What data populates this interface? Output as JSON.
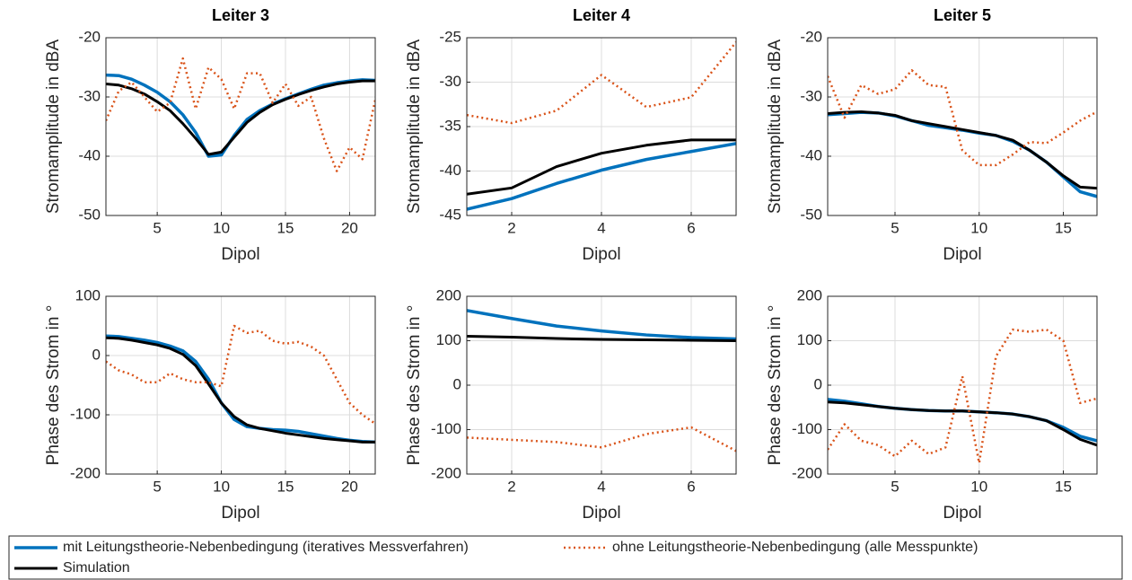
{
  "chart_data": [
    {
      "type": "line",
      "title": "Leiter 3",
      "xlabel": "Dipol",
      "ylabel": "Stromamplitude in dBA",
      "x": [
        1,
        2,
        3,
        4,
        5,
        6,
        7,
        8,
        9,
        10,
        11,
        12,
        13,
        14,
        15,
        16,
        17,
        18,
        19,
        20,
        21,
        22
      ],
      "xlim": [
        1,
        22
      ],
      "xticks": [
        5,
        10,
        15,
        20
      ],
      "ylim": [
        -50,
        -20
      ],
      "yticks": [
        -50,
        -40,
        -30,
        -20
      ],
      "grid": true,
      "series": [
        {
          "name": "mit Leitungstheorie-Nebenbedingung (iteratives Messverfahren)",
          "color": "#0072bd",
          "style": "solid",
          "values": [
            -26.3,
            -26.4,
            -27,
            -28,
            -29.2,
            -30.8,
            -33,
            -36,
            -40,
            -39.8,
            -36.5,
            -33.8,
            -32.3,
            -31.2,
            -30.3,
            -29.5,
            -28.7,
            -28,
            -27.6,
            -27.3,
            -27.1,
            -27.2
          ]
        },
        {
          "name": "Simulation",
          "color": "#000000",
          "style": "solid",
          "values": [
            -27.8,
            -28,
            -28.6,
            -29.5,
            -30.8,
            -32.3,
            -34.5,
            -37,
            -39.7,
            -39.3,
            -36.8,
            -34.3,
            -32.6,
            -31.3,
            -30.4,
            -29.6,
            -28.9,
            -28.3,
            -27.8,
            -27.5,
            -27.3,
            -27.3
          ]
        },
        {
          "name": "ohne Leitungstheorie-Nebenbedingung (alle Messpunkte)",
          "color": "#d95319",
          "style": "dotted",
          "values": [
            -34,
            -29,
            -27.5,
            -30,
            -32.5,
            -31,
            -23.5,
            -32,
            -25,
            -27,
            -32,
            -26,
            -26,
            -31,
            -27.8,
            -31.5,
            -30,
            -37,
            -42.5,
            -38.5,
            -40.5,
            -30.5
          ]
        }
      ]
    },
    {
      "type": "line",
      "title": "Leiter 4",
      "xlabel": "Dipol",
      "ylabel": "Stromamplitude in dBA",
      "x": [
        1,
        2,
        3,
        4,
        5,
        6,
        7
      ],
      "xlim": [
        1,
        7
      ],
      "xticks": [
        2,
        4,
        6
      ],
      "ylim": [
        -45,
        -25
      ],
      "yticks": [
        -45,
        -40,
        -35,
        -30,
        -25
      ],
      "grid": true,
      "series": [
        {
          "name": "mit Leitungstheorie-Nebenbedingung (iteratives Messverfahren)",
          "color": "#0072bd",
          "style": "solid",
          "values": [
            -44.3,
            -43.1,
            -41.4,
            -39.9,
            -38.7,
            -37.8,
            -36.9
          ]
        },
        {
          "name": "Simulation",
          "color": "#000000",
          "style": "solid",
          "values": [
            -42.6,
            -41.9,
            -39.5,
            -38,
            -37.1,
            -36.5,
            -36.5
          ]
        },
        {
          "name": "ohne Leitungstheorie-Nebenbedingung (alle Messpunkte)",
          "color": "#d95319",
          "style": "dotted",
          "values": [
            -33.7,
            -34.6,
            -33.2,
            -29.2,
            -32.8,
            -31.7,
            -25.5
          ]
        }
      ]
    },
    {
      "type": "line",
      "title": "Leiter 5",
      "xlabel": "Dipol",
      "ylabel": "Stromamplitude in dBA",
      "x": [
        1,
        2,
        3,
        4,
        5,
        6,
        7,
        8,
        9,
        10,
        11,
        12,
        13,
        14,
        15,
        16,
        17
      ],
      "xlim": [
        1,
        17
      ],
      "xticks": [
        5,
        10,
        15
      ],
      "ylim": [
        -50,
        -20
      ],
      "yticks": [
        -50,
        -40,
        -30,
        -20
      ],
      "grid": true,
      "series": [
        {
          "name": "mit Leitungstheorie-Nebenbedingung (iteratives Messverfahren)",
          "color": "#0072bd",
          "style": "solid",
          "values": [
            -33,
            -32.8,
            -32.6,
            -32.7,
            -33.2,
            -34,
            -34.8,
            -35.2,
            -35.6,
            -36.1,
            -36.5,
            -37.5,
            -39,
            -41,
            -43.5,
            -46,
            -46.8
          ]
        },
        {
          "name": "Simulation",
          "color": "#000000",
          "style": "solid",
          "values": [
            -32.8,
            -32.6,
            -32.5,
            -32.7,
            -33.1,
            -34,
            -34.5,
            -35,
            -35.5,
            -36,
            -36.5,
            -37.3,
            -39,
            -41,
            -43.3,
            -45.2,
            -45.4
          ]
        },
        {
          "name": "ohne Leitungstheorie-Nebenbedingung (alle Messpunkte)",
          "color": "#d95319",
          "style": "dotted",
          "values": [
            -26.5,
            -33.5,
            -28,
            -29.5,
            -28.7,
            -25.5,
            -28,
            -28.3,
            -39,
            -41.5,
            -41.5,
            -39.7,
            -37.6,
            -37.8,
            -36,
            -34,
            -32.5
          ]
        }
      ]
    },
    {
      "type": "line",
      "xlabel": "Dipol",
      "ylabel": "Phase des Strom in °",
      "x": [
        1,
        2,
        3,
        4,
        5,
        6,
        7,
        8,
        9,
        10,
        11,
        12,
        13,
        14,
        15,
        16,
        17,
        18,
        19,
        20,
        21,
        22
      ],
      "xlim": [
        1,
        22
      ],
      "xticks": [
        5,
        10,
        15,
        20
      ],
      "ylim": [
        -200,
        100
      ],
      "yticks": [
        -200,
        -100,
        0,
        100
      ],
      "grid": true,
      "series": [
        {
          "name": "mit Leitungstheorie-Nebenbedingung (iteratives Messverfahren)",
          "color": "#0072bd",
          "style": "solid",
          "values": [
            33,
            32,
            29,
            26,
            22,
            16,
            8,
            -10,
            -40,
            -80,
            -108,
            -120,
            -123,
            -125,
            -126,
            -128,
            -132,
            -136,
            -140,
            -143,
            -145,
            -146
          ]
        },
        {
          "name": "Simulation",
          "color": "#000000",
          "style": "solid",
          "values": [
            30,
            29,
            26,
            22,
            18,
            12,
            2,
            -17,
            -48,
            -80,
            -103,
            -117,
            -123,
            -127,
            -131,
            -134,
            -137,
            -140,
            -142,
            -144,
            -146,
            -146
          ]
        },
        {
          "name": "ohne Leitungstheorie-Nebenbedingung (alle Messpunkte)",
          "color": "#d95319",
          "style": "dotted",
          "values": [
            -10,
            -25,
            -32,
            -45,
            -45,
            -30,
            -40,
            -45,
            -45,
            -52,
            50,
            38,
            42,
            25,
            20,
            23,
            15,
            0,
            -40,
            -80,
            -100,
            -115
          ]
        }
      ]
    },
    {
      "type": "line",
      "xlabel": "Dipol",
      "ylabel": "Phase des Strom in °",
      "x": [
        1,
        2,
        3,
        4,
        5,
        6,
        7
      ],
      "xlim": [
        1,
        7
      ],
      "xticks": [
        2,
        4,
        6
      ],
      "ylim": [
        -200,
        200
      ],
      "yticks": [
        -200,
        -100,
        0,
        100,
        200
      ],
      "grid": true,
      "series": [
        {
          "name": "mit Leitungstheorie-Nebenbedingung (iteratives Messverfahren)",
          "color": "#0072bd",
          "style": "solid",
          "values": [
            168,
            150,
            133,
            122,
            113,
            107,
            104
          ]
        },
        {
          "name": "Simulation",
          "color": "#000000",
          "style": "solid",
          "values": [
            110,
            108,
            105,
            103,
            102,
            101,
            100
          ]
        },
        {
          "name": "ohne Leitungstheorie-Nebenbedingung (alle Messpunkte)",
          "color": "#d95319",
          "style": "dotted",
          "values": [
            -118,
            -123,
            -128,
            -140,
            -110,
            -95,
            -148
          ]
        }
      ]
    },
    {
      "type": "line",
      "xlabel": "Dipol",
      "ylabel": "Phase des Strom in °",
      "x": [
        1,
        2,
        3,
        4,
        5,
        6,
        7,
        8,
        9,
        10,
        11,
        12,
        13,
        14,
        15,
        16,
        17
      ],
      "xlim": [
        1,
        17
      ],
      "xticks": [
        5,
        10,
        15
      ],
      "ylim": [
        -200,
        200
      ],
      "yticks": [
        -200,
        -100,
        0,
        100,
        200
      ],
      "grid": true,
      "series": [
        {
          "name": "mit Leitungstheorie-Nebenbedingung (iteratives Messverfahren)",
          "color": "#0072bd",
          "style": "solid",
          "values": [
            -32,
            -36,
            -42,
            -48,
            -52,
            -55,
            -57,
            -58,
            -58,
            -60,
            -62,
            -65,
            -71,
            -80,
            -95,
            -115,
            -125
          ]
        },
        {
          "name": "Simulation",
          "color": "#000000",
          "style": "solid",
          "values": [
            -38,
            -40,
            -44,
            -48,
            -52,
            -55,
            -57,
            -58,
            -58,
            -60,
            -62,
            -65,
            -71,
            -80,
            -100,
            -122,
            -135
          ]
        },
        {
          "name": "ohne Leitungstheorie-Nebenbedingung (alle Messpunkte)",
          "color": "#d95319",
          "style": "dotted",
          "values": [
            -145,
            -88,
            -125,
            -135,
            -160,
            -125,
            -155,
            -140,
            20,
            -175,
            65,
            125,
            120,
            125,
            100,
            -40,
            -30
          ]
        }
      ]
    }
  ]
}
